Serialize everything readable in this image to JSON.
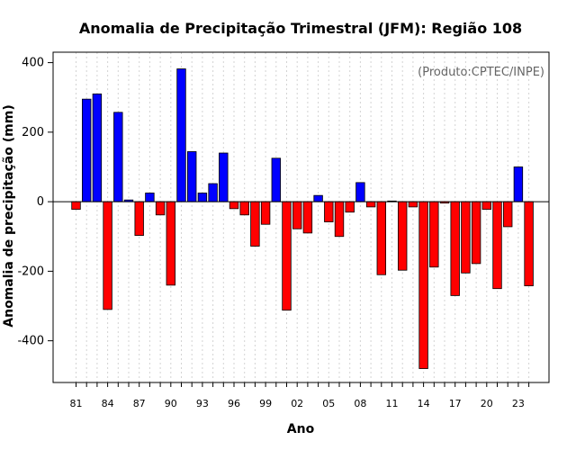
{
  "chart_data": {
    "type": "bar",
    "title": "Anomalia de Precipitação Trimestral (JFM): Região 108",
    "xlabel": "Ano",
    "ylabel": "Anomalia de precipitação (mm)",
    "credit": "(Produto:CPTEC/INPE)",
    "ylim": [
      -520,
      430
    ],
    "yticks": [
      400,
      200,
      0,
      -200,
      -400
    ],
    "xtick_labels": [
      "81",
      "84",
      "87",
      "90",
      "93",
      "96",
      "99",
      "02",
      "05",
      "08",
      "11",
      "14",
      "17",
      "20",
      "23"
    ],
    "categories": [
      "1981",
      "1982",
      "1983",
      "1984",
      "1985",
      "1986",
      "1987",
      "1988",
      "1989",
      "1990",
      "1991",
      "1992",
      "1993",
      "1994",
      "1995",
      "1996",
      "1997",
      "1998",
      "1999",
      "2000",
      "2001",
      "2002",
      "2003",
      "2004",
      "2005",
      "2006",
      "2007",
      "2008",
      "2009",
      "2010",
      "2011",
      "2012",
      "2013",
      "2014",
      "2015",
      "2016",
      "2017",
      "2018",
      "2019",
      "2020",
      "2021",
      "2022",
      "2023",
      "2024"
    ],
    "values": [
      -22,
      295,
      310,
      -310,
      257,
      5,
      -97,
      25,
      -38,
      -240,
      382,
      144,
      25,
      52,
      140,
      -20,
      -38,
      -128,
      -65,
      125,
      -312,
      -78,
      -90,
      18,
      -58,
      -100,
      -30,
      55,
      -15,
      -210,
      2,
      -197,
      -15,
      -480,
      -188,
      -4,
      -270,
      -205,
      -178,
      -22,
      -250,
      -72,
      100,
      -242
    ],
    "colors": {
      "positive": "#0000ff",
      "negative": "#ff0000",
      "grid": "#d3d3d3",
      "zero_line": "#000000"
    }
  }
}
